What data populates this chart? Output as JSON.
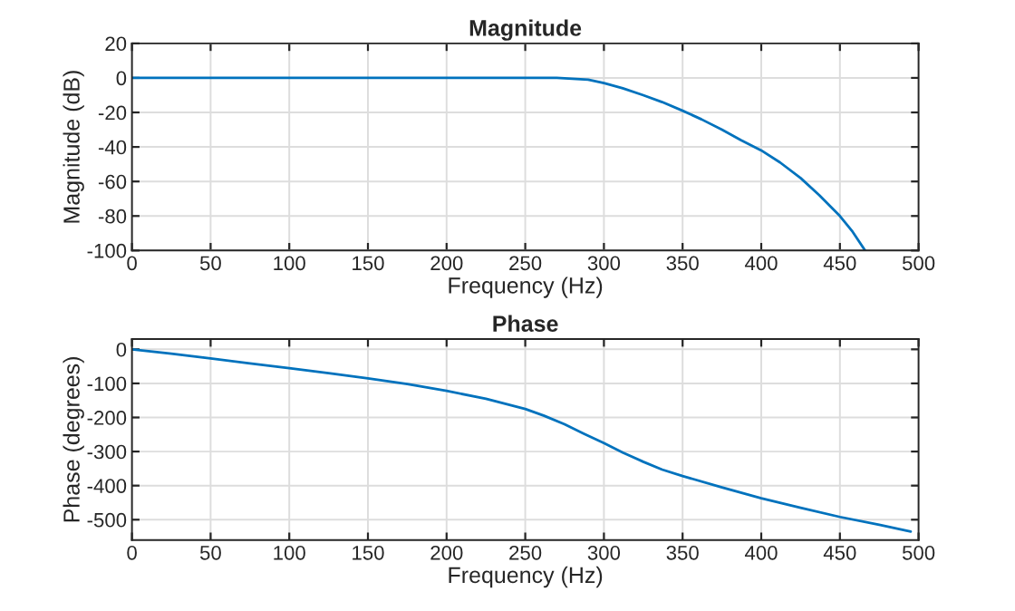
{
  "chart_data": [
    {
      "type": "line",
      "title": "Magnitude",
      "xlabel": "Frequency (Hz)",
      "ylabel": "Magnitude (dB)",
      "x": [
        0,
        50,
        100,
        150,
        200,
        250,
        270,
        280,
        290,
        300,
        312,
        325,
        337,
        350,
        362,
        375,
        387,
        400,
        412,
        425,
        437,
        450,
        458,
        466
      ],
      "series": [
        {
          "color": "#0072bd",
          "values": [
            0,
            0,
            0,
            0,
            0,
            0,
            0,
            -0.5,
            -1,
            -3,
            -6,
            -10,
            -14,
            -19,
            -24,
            -30,
            -36,
            -42,
            -49,
            -58,
            -68,
            -80,
            -89,
            -100
          ]
        }
      ],
      "xlim": [
        0,
        500
      ],
      "xticks": [
        0,
        50,
        100,
        150,
        200,
        250,
        300,
        350,
        400,
        450,
        500
      ],
      "ylim": [
        -100,
        20
      ],
      "yticks": [
        -100,
        -80,
        -60,
        -40,
        -20,
        0,
        20
      ],
      "grid": true
    },
    {
      "type": "line",
      "title": "Phase",
      "xlabel": "Frequency (Hz)",
      "ylabel": "Phase (degrees)",
      "x": [
        0,
        25,
        50,
        75,
        100,
        125,
        150,
        175,
        200,
        225,
        250,
        262,
        275,
        287,
        300,
        312,
        325,
        337,
        350,
        375,
        400,
        425,
        450,
        475,
        495
      ],
      "series": [
        {
          "color": "#0072bd",
          "values": [
            0,
            -13,
            -27,
            -41,
            -55,
            -70,
            -85,
            -102,
            -122,
            -145,
            -175,
            -195,
            -220,
            -247,
            -275,
            -303,
            -330,
            -353,
            -372,
            -405,
            -437,
            -465,
            -492,
            -515,
            -535
          ]
        }
      ],
      "xlim": [
        0,
        500
      ],
      "xticks": [
        0,
        50,
        100,
        150,
        200,
        250,
        300,
        350,
        400,
        450,
        500
      ],
      "ylim": [
        -560,
        30
      ],
      "yticks": [
        -500,
        -400,
        -300,
        -200,
        -100,
        0
      ],
      "grid": true
    }
  ]
}
